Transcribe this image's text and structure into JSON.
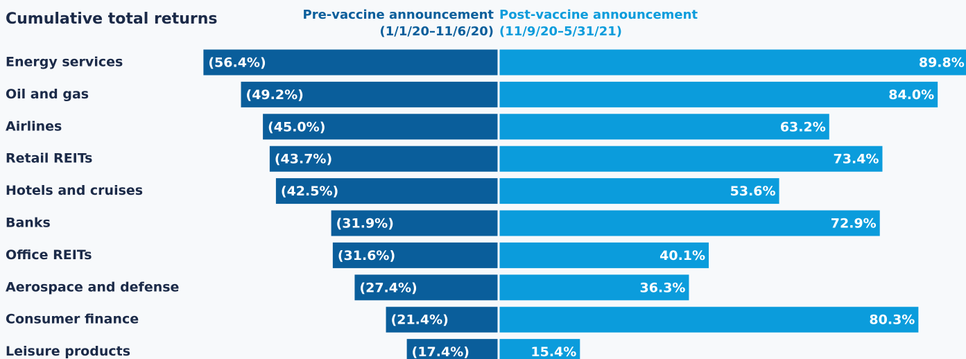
{
  "chart_data": {
    "type": "diverging-bar",
    "title": "Cumulative total returns",
    "categories": [
      "Energy services",
      "Oil and gas",
      "Airlines",
      "Retail REITs",
      "Hotels and cruises",
      "Banks",
      "Office REITs",
      "Aerospace and defense",
      "Consumer finance",
      "Leisure products"
    ],
    "series": [
      {
        "name": "Pre-vaccine announcement",
        "period": "(1/1/20–11/6/20)",
        "color": "#0a5e9b",
        "values": [
          -56.4,
          -49.2,
          -45.0,
          -43.7,
          -42.5,
          -31.9,
          -31.6,
          -27.4,
          -21.4,
          -17.4
        ],
        "value_labels": [
          "(56.4%)",
          "(49.2%)",
          "(45.0%)",
          "(43.7%)",
          "(42.5%)",
          "(31.9%)",
          "(31.6%)",
          "(27.4%)",
          "(21.4%)",
          "(17.4%)"
        ]
      },
      {
        "name": "Post-vaccine announcement",
        "period": "(11/9/20–5/31/21)",
        "color": "#0b9cdc",
        "values": [
          89.8,
          84.0,
          63.2,
          73.4,
          53.6,
          72.9,
          40.1,
          36.3,
          80.3,
          15.4
        ],
        "value_labels": [
          "89.8%",
          "84.0%",
          "63.2%",
          "73.4%",
          "53.6%",
          "72.9%",
          "40.1%",
          "36.3%",
          "80.3%",
          "15.4%"
        ]
      }
    ]
  }
}
